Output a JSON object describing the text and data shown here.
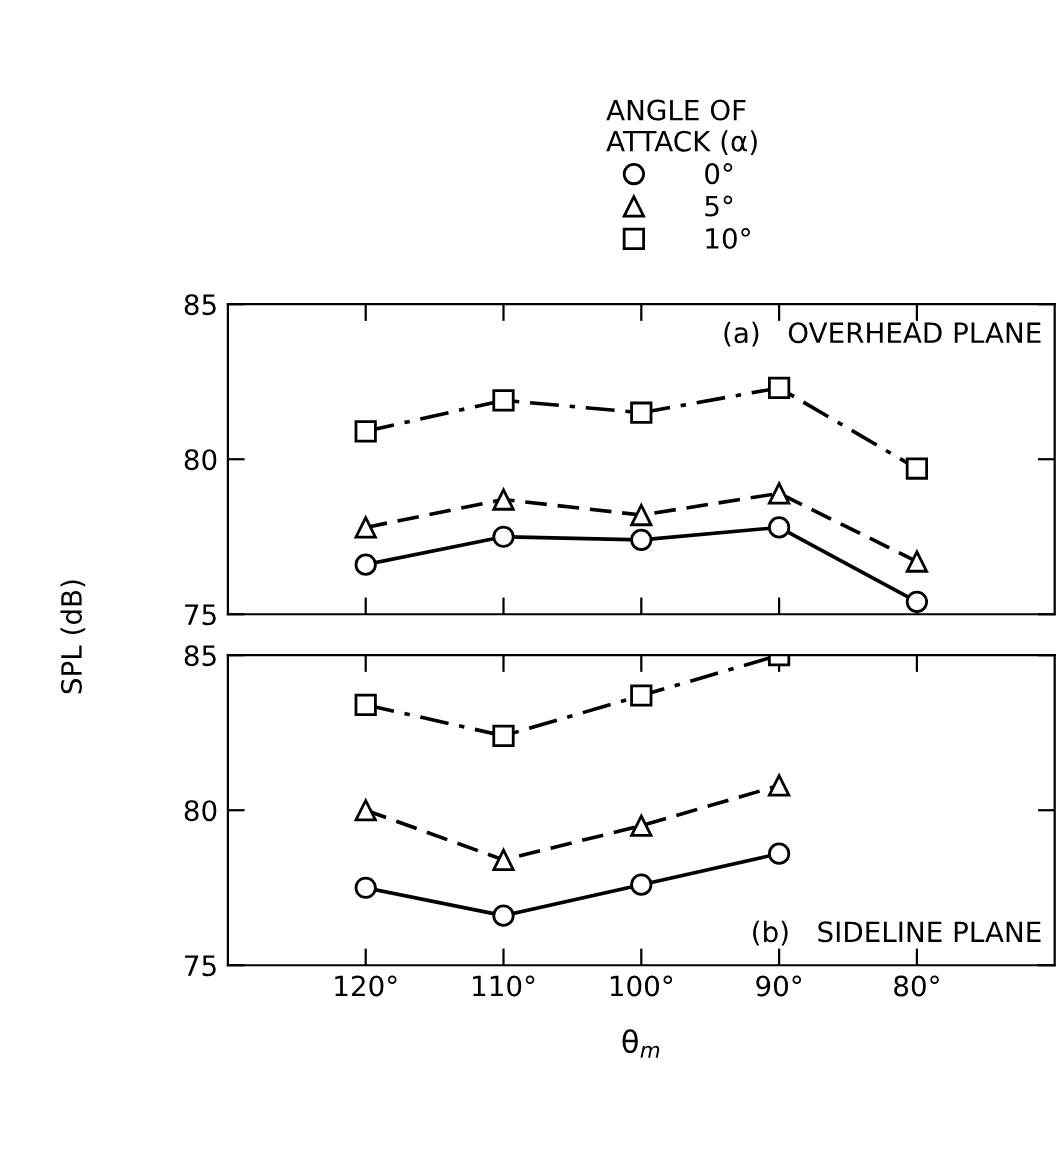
{
  "chart_data": [
    {
      "type": "line",
      "legend_title": "ANGLE OF\nATTACK (α)",
      "legend": "top",
      "annotations": [
        "(a)   OVERHEAD PLANE"
      ],
      "tick_labels": "y",
      "x": [
        120,
        110,
        100,
        90,
        80
      ],
      "xlim": [
        130,
        70
      ],
      "xticks": [
        {
          "value": 120,
          "label": null
        },
        {
          "value": 110,
          "label": null
        },
        {
          "value": 100,
          "label": null
        },
        {
          "value": 90,
          "label": null
        },
        {
          "value": 80,
          "label": null
        }
      ],
      "ylim": [
        75,
        85
      ],
      "yticks": [
        75,
        80,
        85
      ],
      "grid": false,
      "series": [
        {
          "name": "0°",
          "color": "#000000",
          "marker": "circle",
          "line_style": "solid",
          "values": [
            76.6,
            77.5,
            77.4,
            77.8,
            75.4
          ]
        },
        {
          "name": "5°",
          "color": "#000000",
          "marker": "triangle",
          "line_style": "dashed",
          "values": [
            77.8,
            78.7,
            78.2,
            78.9,
            76.7
          ]
        },
        {
          "name": "10°",
          "color": "#000000",
          "marker": "square",
          "line_style": "dashdot",
          "values": [
            80.9,
            81.9,
            81.5,
            82.3,
            79.7
          ]
        }
      ]
    },
    {
      "type": "line",
      "ylabel": "SPL (dB)",
      "xlabel": "θ$_{m}$",
      "annotations": [
        "(b)   SIDELINE PLANE"
      ],
      "x": [
        120,
        110,
        100,
        90
      ],
      "xlim": [
        130,
        70
      ],
      "xticks": [
        {
          "value": 120,
          "label": "120°"
        },
        {
          "value": 110,
          "label": "110°"
        },
        {
          "value": 100,
          "label": "100°"
        },
        {
          "value": 90,
          "label": "90°"
        },
        {
          "value": 80,
          "label": "80°"
        }
      ],
      "ylim": [
        75,
        85
      ],
      "yticks": [
        75,
        80,
        85
      ],
      "grid": false,
      "series": [
        {
          "color": "#000000",
          "marker": "circle",
          "line_style": "solid",
          "values": [
            77.5,
            76.6,
            77.6,
            78.6
          ]
        },
        {
          "color": "#000000",
          "marker": "triangle",
          "line_style": "dashed",
          "values": [
            80.0,
            78.4,
            79.5,
            80.8
          ]
        },
        {
          "color": "#000000",
          "marker": "square",
          "line_style": "dashdot",
          "values": [
            83.4,
            82.4,
            83.7,
            85.0
          ]
        }
      ]
    }
  ]
}
